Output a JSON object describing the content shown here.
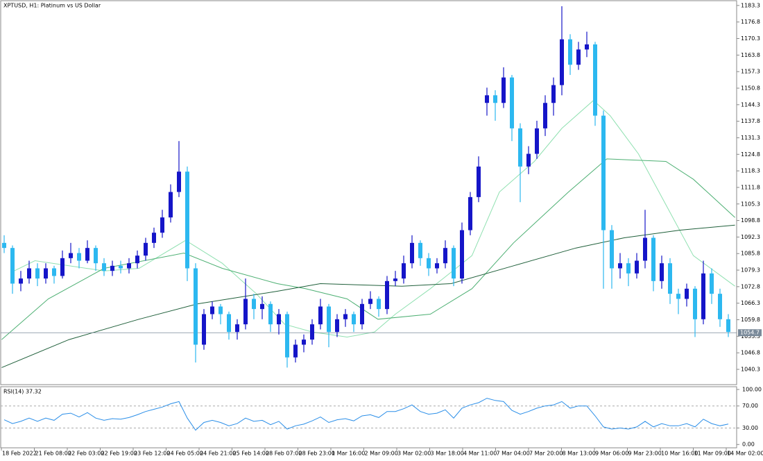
{
  "chart_data": [
    {
      "type": "candlestick",
      "title": "XPTUSD, H1:  Platinum vs US Dollar",
      "up_color": "#1515c8",
      "down_color": "#2cb8f0",
      "candles": [
        [
          1090,
          1093,
          1086,
          1088
        ],
        [
          1088,
          1089,
          1070,
          1074
        ],
        [
          1074,
          1079,
          1071,
          1076
        ],
        [
          1076,
          1083,
          1074,
          1080
        ],
        [
          1080,
          1082,
          1073,
          1076
        ],
        [
          1076,
          1082,
          1074,
          1080
        ],
        [
          1080,
          1081,
          1074,
          1077
        ],
        [
          1077,
          1087,
          1076,
          1084
        ],
        [
          1084,
          1090,
          1082,
          1086
        ],
        [
          1086,
          1088,
          1080,
          1083
        ],
        [
          1083,
          1091,
          1082,
          1088
        ],
        [
          1088,
          1089,
          1079,
          1082
        ],
        [
          1082,
          1084,
          1077,
          1079
        ],
        [
          1079,
          1083,
          1077,
          1081
        ],
        [
          1081,
          1083,
          1078,
          1080
        ],
        [
          1080,
          1084,
          1078,
          1082
        ],
        [
          1082,
          1087,
          1080,
          1085
        ],
        [
          1085,
          1092,
          1083,
          1090
        ],
        [
          1090,
          1096,
          1088,
          1094
        ],
        [
          1094,
          1103,
          1092,
          1100
        ],
        [
          1100,
          1113,
          1098,
          1110
        ],
        [
          1110,
          1130,
          1108,
          1118
        ],
        [
          1118,
          1120,
          1075,
          1080
        ],
        [
          1080,
          1082,
          1043,
          1050
        ],
        [
          1050,
          1064,
          1048,
          1062
        ],
        [
          1062,
          1067,
          1060,
          1065
        ],
        [
          1065,
          1066,
          1058,
          1062
        ],
        [
          1062,
          1063,
          1052,
          1055
        ],
        [
          1055,
          1060,
          1052,
          1058
        ],
        [
          1058,
          1076,
          1056,
          1068
        ],
        [
          1068,
          1070,
          1060,
          1064
        ],
        [
          1064,
          1069,
          1060,
          1066
        ],
        [
          1066,
          1067,
          1055,
          1058
        ],
        [
          1058,
          1064,
          1054,
          1062
        ],
        [
          1062,
          1063,
          1041,
          1045
        ],
        [
          1045,
          1052,
          1043,
          1050
        ],
        [
          1050,
          1054,
          1047,
          1052
        ],
        [
          1052,
          1060,
          1050,
          1058
        ],
        [
          1058,
          1068,
          1056,
          1065
        ],
        [
          1065,
          1066,
          1049,
          1055
        ],
        [
          1055,
          1062,
          1053,
          1060
        ],
        [
          1060,
          1064,
          1057,
          1062
        ],
        [
          1062,
          1063,
          1055,
          1058
        ],
        [
          1058,
          1068,
          1056,
          1066
        ],
        [
          1066,
          1071,
          1064,
          1068
        ],
        [
          1068,
          1069,
          1061,
          1064
        ],
        [
          1064,
          1077,
          1062,
          1075
        ],
        [
          1075,
          1079,
          1073,
          1076
        ],
        [
          1076,
          1085,
          1074,
          1082
        ],
        [
          1082,
          1093,
          1080,
          1090
        ],
        [
          1090,
          1091,
          1081,
          1084
        ],
        [
          1084,
          1086,
          1077,
          1080
        ],
        [
          1080,
          1084,
          1078,
          1082
        ],
        [
          1082,
          1091,
          1080,
          1088
        ],
        [
          1088,
          1089,
          1073,
          1076
        ],
        [
          1076,
          1098,
          1074,
          1095
        ],
        [
          1095,
          1110,
          1093,
          1108
        ],
        [
          1108,
          1124,
          1106,
          1120
        ],
        [
          1145,
          1151,
          1140,
          1148
        ],
        [
          1148,
          1150,
          1138,
          1145
        ],
        [
          1145,
          1159,
          1143,
          1155
        ],
        [
          1155,
          1156,
          1130,
          1135
        ],
        [
          1135,
          1137,
          1106,
          1120
        ],
        [
          1120,
          1128,
          1117,
          1125
        ],
        [
          1125,
          1138,
          1123,
          1135
        ],
        [
          1135,
          1148,
          1132,
          1145
        ],
        [
          1145,
          1155,
          1140,
          1152
        ],
        [
          1152,
          1183,
          1148,
          1170
        ],
        [
          1170,
          1172,
          1156,
          1160
        ],
        [
          1160,
          1169,
          1158,
          1166
        ],
        [
          1166,
          1173,
          1163,
          1168
        ],
        [
          1168,
          1169,
          1136,
          1140
        ],
        [
          1140,
          1142,
          1072,
          1095
        ],
        [
          1095,
          1097,
          1072,
          1080
        ],
        [
          1080,
          1086,
          1076,
          1082
        ],
        [
          1082,
          1084,
          1073,
          1078
        ],
        [
          1078,
          1086,
          1076,
          1083
        ],
        [
          1083,
          1103,
          1080,
          1092
        ],
        [
          1092,
          1093,
          1071,
          1075
        ],
        [
          1075,
          1085,
          1072,
          1082
        ],
        [
          1082,
          1084,
          1066,
          1070
        ],
        [
          1070,
          1072,
          1062,
          1068
        ],
        [
          1068,
          1074,
          1065,
          1072
        ],
        [
          1072,
          1073,
          1053,
          1060
        ],
        [
          1060,
          1083,
          1058,
          1078
        ],
        [
          1078,
          1080,
          1066,
          1070
        ],
        [
          1070,
          1072,
          1057,
          1060
        ],
        [
          1060,
          1062,
          1053,
          1055
        ]
      ],
      "ma_lines": [
        {
          "color": "#8fe0b0",
          "x": [
            1.2,
            3.7,
            12,
            16.2,
            21.8,
            26.2,
            30.3,
            33.7,
            37,
            41.2,
            44.5,
            47,
            51.2,
            56.2,
            59.5,
            63.7,
            67,
            70.8,
            72.8,
            76.2,
            79.5,
            82.8,
            87.8
          ],
          "values": [
            1079,
            1083,
            1079,
            1080,
            1091,
            1082,
            1070,
            1058,
            1055,
            1053,
            1055,
            1062,
            1072,
            1085,
            1110,
            1122,
            1135,
            1146,
            1140,
            1125,
            1105,
            1085,
            1073
          ]
        },
        {
          "color": "#4caf72",
          "x": [
            -0.3,
            5.3,
            12,
            21.6,
            26.2,
            32.8,
            36.2,
            41.2,
            44.9,
            51.2,
            56.2,
            61.2,
            67.8,
            72.4,
            79.5,
            82.8,
            87.8
          ],
          "values": [
            1052,
            1068,
            1080,
            1086,
            1080,
            1074,
            1072,
            1068,
            1060,
            1062,
            1072,
            1090,
            1110,
            1123,
            1122,
            1115,
            1100
          ]
        },
        {
          "color": "#1f5f3a",
          "x": [
            -0.3,
            7.8,
            16.2,
            23.2,
            32.8,
            38,
            47.8,
            53.7,
            61.2,
            68.7,
            74.5,
            81.2,
            87.8
          ],
          "values": [
            1041,
            1052,
            1060,
            1066,
            1071,
            1074,
            1073,
            1074,
            1081,
            1088,
            1092,
            1095,
            1097
          ]
        }
      ],
      "current_price": 1054.7,
      "current_price_color": "#7a8a9a",
      "ylim": [
        1034.3,
        1184.9
      ],
      "yticks": [
        1183.3,
        1176.8,
        1170.3,
        1163.8,
        1157.3,
        1150.8,
        1144.3,
        1137.8,
        1131.3,
        1124.8,
        1118.3,
        1111.8,
        1105.3,
        1098.8,
        1092.3,
        1085.8,
        1079.3,
        1072.8,
        1066.3,
        1059.8,
        1053.3,
        1046.8,
        1040.3
      ],
      "time_labels": [
        "18 Feb 2022",
        "21 Feb 08:00",
        "22 Feb 03:00",
        "22 Feb 19:00",
        "23 Feb 12:00",
        "24 Feb 05:00",
        "24 Feb 21:00",
        "25 Feb 14:00",
        "28 Feb 07:00",
        "28 Feb 23:00",
        "1 Mar 16:00",
        "2 Mar 09:00",
        "3 Mar 02:00",
        "3 Mar 18:00",
        "4 Mar 11:00",
        "7 Mar 04:00",
        "7 Mar 20:00",
        "8 Mar 13:00",
        "9 Mar 06:00",
        "9 Mar 23:00",
        "10 Mar 16:00",
        "11 Mar 09:00",
        "14 Mar 02:00"
      ]
    },
    {
      "type": "line",
      "title": "RSI(14) 37.32",
      "color": "#2a8ee8",
      "values": [
        45,
        38,
        42,
        48,
        42,
        48,
        44,
        55,
        57,
        50,
        58,
        48,
        44,
        47,
        46,
        49,
        54,
        60,
        64,
        68,
        74,
        78,
        48,
        26,
        40,
        44,
        40,
        34,
        38,
        48,
        42,
        44,
        36,
        42,
        28,
        34,
        37,
        43,
        50,
        40,
        45,
        47,
        43,
        52,
        54,
        49,
        60,
        60,
        65,
        72,
        60,
        55,
        57,
        63,
        48,
        66,
        72,
        76,
        84,
        80,
        78,
        62,
        55,
        60,
        66,
        70,
        72,
        78,
        66,
        70,
        70,
        52,
        32,
        28,
        30,
        28,
        32,
        42,
        32,
        38,
        34,
        34,
        38,
        32,
        46,
        38,
        34,
        37.32
      ],
      "ylim": [
        -6,
        105
      ],
      "yticks": [
        {
          "value": 100,
          "label": "100.00"
        },
        {
          "value": 70,
          "label": "70.00"
        },
        {
          "value": 30,
          "label": "30.00"
        },
        {
          "value": 0,
          "label": "0.00"
        }
      ],
      "levels": [
        70,
        30
      ]
    }
  ]
}
